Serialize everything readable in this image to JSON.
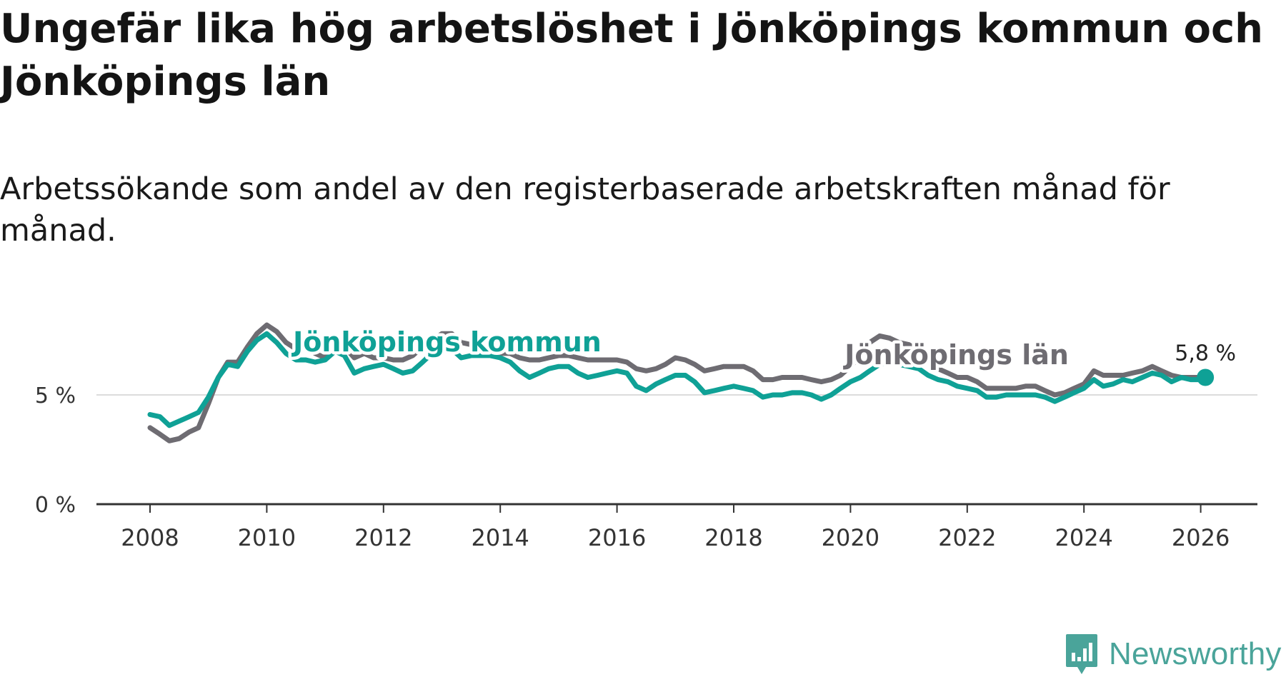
{
  "title": "Ungefär lika hög arbetslöshet i Jönköpings kommun och Jönköpings län",
  "subtitle": "Arbetssökande som andel av den registerbaserade arbetskraften månad för månad.",
  "brand": {
    "name": "Newsworthy",
    "icon": "newsworthy-logo-icon",
    "color": "#4aa49a"
  },
  "chart_data": {
    "type": "line",
    "x_unit": "year",
    "xlim": [
      2007.1,
      2027.0
    ],
    "ylim": [
      0,
      8.5
    ],
    "grid": true,
    "y_ticks": [
      {
        "value": 0,
        "label": "0 %"
      },
      {
        "value": 5,
        "label": "5 %"
      }
    ],
    "x_ticks": [
      {
        "value": 2008,
        "label": "2008"
      },
      {
        "value": 2010,
        "label": "2010"
      },
      {
        "value": 2012,
        "label": "2012"
      },
      {
        "value": 2014,
        "label": "2014"
      },
      {
        "value": 2016,
        "label": "2016"
      },
      {
        "value": 2018,
        "label": "2018"
      },
      {
        "value": 2020,
        "label": "2020"
      },
      {
        "value": 2022,
        "label": "2022"
      },
      {
        "value": 2024,
        "label": "2024"
      },
      {
        "value": 2026,
        "label": "2026"
      }
    ],
    "series": [
      {
        "name": "Jönköpings län",
        "color": "#6e6c72",
        "label_x": 2019.9,
        "label_y": 6.4,
        "points": [
          [
            2008.0,
            3.5
          ],
          [
            2008.17,
            3.2
          ],
          [
            2008.33,
            2.9
          ],
          [
            2008.5,
            3.0
          ],
          [
            2008.67,
            3.3
          ],
          [
            2008.83,
            3.5
          ],
          [
            2009.0,
            4.6
          ],
          [
            2009.17,
            5.8
          ],
          [
            2009.33,
            6.5
          ],
          [
            2009.5,
            6.5
          ],
          [
            2009.67,
            7.2
          ],
          [
            2009.83,
            7.8
          ],
          [
            2010.0,
            8.2
          ],
          [
            2010.17,
            7.9
          ],
          [
            2010.33,
            7.4
          ],
          [
            2010.5,
            7.1
          ],
          [
            2010.67,
            7.2
          ],
          [
            2010.83,
            6.9
          ],
          [
            2011.0,
            6.7
          ],
          [
            2011.17,
            7.4
          ],
          [
            2011.33,
            7.2
          ],
          [
            2011.5,
            6.7
          ],
          [
            2011.67,
            6.9
          ],
          [
            2011.83,
            6.7
          ],
          [
            2012.0,
            6.7
          ],
          [
            2012.17,
            6.6
          ],
          [
            2012.33,
            6.6
          ],
          [
            2012.5,
            6.8
          ],
          [
            2012.67,
            7.2
          ],
          [
            2012.83,
            7.5
          ],
          [
            2013.0,
            7.8
          ],
          [
            2013.17,
            7.8
          ],
          [
            2013.33,
            7.4
          ],
          [
            2013.5,
            7.3
          ],
          [
            2013.67,
            7.2
          ],
          [
            2013.83,
            7.0
          ],
          [
            2014.0,
            6.9
          ],
          [
            2014.17,
            6.9
          ],
          [
            2014.33,
            6.7
          ],
          [
            2014.5,
            6.6
          ],
          [
            2014.67,
            6.6
          ],
          [
            2014.83,
            6.7
          ],
          [
            2015.0,
            6.8
          ],
          [
            2015.17,
            6.8
          ],
          [
            2015.33,
            6.7
          ],
          [
            2015.5,
            6.6
          ],
          [
            2015.67,
            6.6
          ],
          [
            2015.83,
            6.6
          ],
          [
            2016.0,
            6.6
          ],
          [
            2016.17,
            6.5
          ],
          [
            2016.33,
            6.2
          ],
          [
            2016.5,
            6.1
          ],
          [
            2016.67,
            6.2
          ],
          [
            2016.83,
            6.4
          ],
          [
            2017.0,
            6.7
          ],
          [
            2017.17,
            6.6
          ],
          [
            2017.33,
            6.4
          ],
          [
            2017.5,
            6.1
          ],
          [
            2017.67,
            6.2
          ],
          [
            2017.83,
            6.3
          ],
          [
            2018.0,
            6.3
          ],
          [
            2018.17,
            6.3
          ],
          [
            2018.33,
            6.1
          ],
          [
            2018.5,
            5.7
          ],
          [
            2018.67,
            5.7
          ],
          [
            2018.83,
            5.8
          ],
          [
            2019.0,
            5.8
          ],
          [
            2019.17,
            5.8
          ],
          [
            2019.33,
            5.7
          ],
          [
            2019.5,
            5.6
          ],
          [
            2019.67,
            5.7
          ],
          [
            2019.83,
            5.9
          ],
          [
            2020.0,
            6.3
          ],
          [
            2020.17,
            6.8
          ],
          [
            2020.33,
            7.4
          ],
          [
            2020.5,
            7.7
          ],
          [
            2020.67,
            7.6
          ],
          [
            2020.83,
            7.4
          ],
          [
            2021.0,
            7.3
          ],
          [
            2021.17,
            7.0
          ],
          [
            2021.33,
            6.6
          ],
          [
            2021.5,
            6.2
          ],
          [
            2021.67,
            6.0
          ],
          [
            2021.83,
            5.8
          ],
          [
            2022.0,
            5.8
          ],
          [
            2022.17,
            5.6
          ],
          [
            2022.33,
            5.3
          ],
          [
            2022.5,
            5.3
          ],
          [
            2022.67,
            5.3
          ],
          [
            2022.83,
            5.3
          ],
          [
            2023.0,
            5.4
          ],
          [
            2023.17,
            5.4
          ],
          [
            2023.33,
            5.2
          ],
          [
            2023.5,
            5.0
          ],
          [
            2023.67,
            5.1
          ],
          [
            2023.83,
            5.3
          ],
          [
            2024.0,
            5.5
          ],
          [
            2024.17,
            6.1
          ],
          [
            2024.33,
            5.9
          ],
          [
            2024.5,
            5.9
          ],
          [
            2024.67,
            5.9
          ],
          [
            2024.83,
            6.0
          ],
          [
            2025.0,
            6.1
          ],
          [
            2025.17,
            6.3
          ],
          [
            2025.33,
            6.1
          ],
          [
            2025.5,
            5.9
          ],
          [
            2025.67,
            5.8
          ],
          [
            2025.83,
            5.8
          ],
          [
            2026.0,
            5.8
          ],
          [
            2026.08,
            5.8
          ]
        ]
      },
      {
        "name": "Jönköpings kommun",
        "color": "#0fa196",
        "label_x": 2010.45,
        "label_y": 7.0,
        "points": [
          [
            2008.0,
            4.1
          ],
          [
            2008.17,
            4.0
          ],
          [
            2008.33,
            3.6
          ],
          [
            2008.5,
            3.8
          ],
          [
            2008.67,
            4.0
          ],
          [
            2008.83,
            4.2
          ],
          [
            2009.0,
            4.9
          ],
          [
            2009.17,
            5.8
          ],
          [
            2009.33,
            6.4
          ],
          [
            2009.5,
            6.3
          ],
          [
            2009.67,
            7.0
          ],
          [
            2009.83,
            7.5
          ],
          [
            2010.0,
            7.8
          ],
          [
            2010.17,
            7.4
          ],
          [
            2010.33,
            6.9
          ],
          [
            2010.5,
            6.6
          ],
          [
            2010.67,
            6.6
          ],
          [
            2010.83,
            6.5
          ],
          [
            2011.0,
            6.6
          ],
          [
            2011.17,
            7.0
          ],
          [
            2011.33,
            6.8
          ],
          [
            2011.5,
            6.0
          ],
          [
            2011.67,
            6.2
          ],
          [
            2011.83,
            6.3
          ],
          [
            2012.0,
            6.4
          ],
          [
            2012.17,
            6.2
          ],
          [
            2012.33,
            6.0
          ],
          [
            2012.5,
            6.1
          ],
          [
            2012.67,
            6.5
          ],
          [
            2012.83,
            6.9
          ],
          [
            2013.0,
            7.1
          ],
          [
            2013.17,
            7.1
          ],
          [
            2013.33,
            6.7
          ],
          [
            2013.5,
            6.8
          ],
          [
            2013.67,
            6.8
          ],
          [
            2013.83,
            6.8
          ],
          [
            2014.0,
            6.7
          ],
          [
            2014.17,
            6.5
          ],
          [
            2014.33,
            6.1
          ],
          [
            2014.5,
            5.8
          ],
          [
            2014.67,
            6.0
          ],
          [
            2014.83,
            6.2
          ],
          [
            2015.0,
            6.3
          ],
          [
            2015.17,
            6.3
          ],
          [
            2015.33,
            6.0
          ],
          [
            2015.5,
            5.8
          ],
          [
            2015.67,
            5.9
          ],
          [
            2015.83,
            6.0
          ],
          [
            2016.0,
            6.1
          ],
          [
            2016.17,
            6.0
          ],
          [
            2016.33,
            5.4
          ],
          [
            2016.5,
            5.2
          ],
          [
            2016.67,
            5.5
          ],
          [
            2016.83,
            5.7
          ],
          [
            2017.0,
            5.9
          ],
          [
            2017.17,
            5.9
          ],
          [
            2017.33,
            5.6
          ],
          [
            2017.5,
            5.1
          ],
          [
            2017.67,
            5.2
          ],
          [
            2017.83,
            5.3
          ],
          [
            2018.0,
            5.4
          ],
          [
            2018.17,
            5.3
          ],
          [
            2018.33,
            5.2
          ],
          [
            2018.5,
            4.9
          ],
          [
            2018.67,
            5.0
          ],
          [
            2018.83,
            5.0
          ],
          [
            2019.0,
            5.1
          ],
          [
            2019.17,
            5.1
          ],
          [
            2019.33,
            5.0
          ],
          [
            2019.5,
            4.8
          ],
          [
            2019.67,
            5.0
          ],
          [
            2019.83,
            5.3
          ],
          [
            2020.0,
            5.6
          ],
          [
            2020.17,
            5.8
          ],
          [
            2020.33,
            6.1
          ],
          [
            2020.5,
            6.4
          ],
          [
            2020.67,
            6.5
          ],
          [
            2020.83,
            6.4
          ],
          [
            2021.0,
            6.3
          ],
          [
            2021.17,
            6.2
          ],
          [
            2021.33,
            5.9
          ],
          [
            2021.5,
            5.7
          ],
          [
            2021.67,
            5.6
          ],
          [
            2021.83,
            5.4
          ],
          [
            2022.0,
            5.3
          ],
          [
            2022.17,
            5.2
          ],
          [
            2022.33,
            4.9
          ],
          [
            2022.5,
            4.9
          ],
          [
            2022.67,
            5.0
          ],
          [
            2022.83,
            5.0
          ],
          [
            2023.0,
            5.0
          ],
          [
            2023.17,
            5.0
          ],
          [
            2023.33,
            4.9
          ],
          [
            2023.5,
            4.7
          ],
          [
            2023.67,
            4.9
          ],
          [
            2023.83,
            5.1
          ],
          [
            2024.0,
            5.3
          ],
          [
            2024.17,
            5.7
          ],
          [
            2024.33,
            5.4
          ],
          [
            2024.5,
            5.5
          ],
          [
            2024.67,
            5.7
          ],
          [
            2024.83,
            5.6
          ],
          [
            2025.0,
            5.8
          ],
          [
            2025.17,
            6.0
          ],
          [
            2025.33,
            5.9
          ],
          [
            2025.5,
            5.6
          ],
          [
            2025.67,
            5.8
          ],
          [
            2025.83,
            5.7
          ],
          [
            2026.0,
            5.7
          ],
          [
            2026.08,
            5.8
          ]
        ]
      }
    ],
    "end_value": {
      "series": "Jönköpings kommun",
      "x": 2026.08,
      "y": 5.8,
      "label": "5,8 %"
    }
  }
}
